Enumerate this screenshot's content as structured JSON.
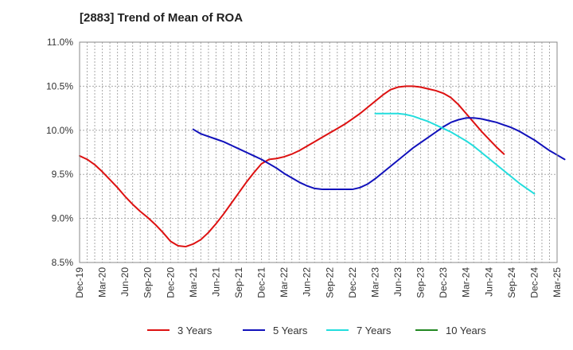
{
  "chart_data": {
    "type": "line",
    "title": "[2883]  Trend of Mean of ROA",
    "xlabel": "",
    "ylabel": "",
    "x_tick_labels": [
      "Dec-19",
      "Mar-20",
      "Jun-20",
      "Sep-20",
      "Dec-20",
      "Mar-21",
      "Jun-21",
      "Sep-21",
      "Dec-21",
      "Mar-22",
      "Jun-22",
      "Sep-22",
      "Dec-22",
      "Mar-23",
      "Jun-23",
      "Sep-23",
      "Dec-23",
      "Mar-24",
      "Jun-24",
      "Sep-24",
      "Dec-24",
      "Mar-25"
    ],
    "y_tick_labels": [
      "8.5%",
      "9.0%",
      "9.5%",
      "10.0%",
      "10.5%",
      "11.0%"
    ],
    "y_ticks": [
      8.5,
      9.0,
      9.5,
      10.0,
      10.5,
      11.0
    ],
    "ylim": [
      8.5,
      11.0
    ],
    "grid": true,
    "legend_position": "bottom",
    "series": [
      {
        "name": "3 Years",
        "color": "#dd1111",
        "start": "Dec-19",
        "values": [
          9.71,
          9.67,
          9.61,
          9.53,
          9.44,
          9.35,
          9.25,
          9.16,
          9.08,
          9.01,
          8.93,
          8.84,
          8.74,
          8.69,
          8.68,
          8.71,
          8.76,
          8.84,
          8.94,
          9.05,
          9.17,
          9.29,
          9.41,
          9.52,
          9.62,
          9.67,
          9.68,
          9.7,
          9.73,
          9.77,
          9.82,
          9.87,
          9.92,
          9.97,
          10.02,
          10.07,
          10.13,
          10.19,
          10.26,
          10.33,
          10.4,
          10.46,
          10.49,
          10.5,
          10.5,
          10.49,
          10.47,
          10.45,
          10.42,
          10.37,
          10.29,
          10.19,
          10.09,
          9.99,
          9.9,
          9.81,
          9.73
        ]
      },
      {
        "name": "5 Years",
        "color": "#1111bb",
        "start": "Mar-21",
        "values": [
          10.01,
          9.96,
          9.93,
          9.9,
          9.87,
          9.83,
          9.79,
          9.75,
          9.71,
          9.67,
          9.62,
          9.57,
          9.51,
          9.46,
          9.41,
          9.37,
          9.34,
          9.33,
          9.33,
          9.33,
          9.33,
          9.33,
          9.35,
          9.39,
          9.45,
          9.52,
          9.59,
          9.66,
          9.73,
          9.8,
          9.86,
          9.92,
          9.98,
          10.04,
          10.09,
          10.12,
          10.14,
          10.14,
          10.13,
          10.11,
          10.09,
          10.06,
          10.03,
          9.99,
          9.94,
          9.89,
          9.83,
          9.77,
          9.72,
          9.67
        ]
      },
      {
        "name": "7 Years",
        "color": "#22dddd",
        "start": "Mar-23",
        "values": [
          10.19,
          10.19,
          10.19,
          10.19,
          10.18,
          10.16,
          10.13,
          10.1,
          10.06,
          10.02,
          9.98,
          9.93,
          9.88,
          9.82,
          9.75,
          9.68,
          9.61,
          9.54,
          9.47,
          9.4,
          9.34,
          9.28
        ]
      },
      {
        "name": "10 Years",
        "color": "#228822",
        "start": "Mar-23",
        "values": []
      }
    ]
  }
}
